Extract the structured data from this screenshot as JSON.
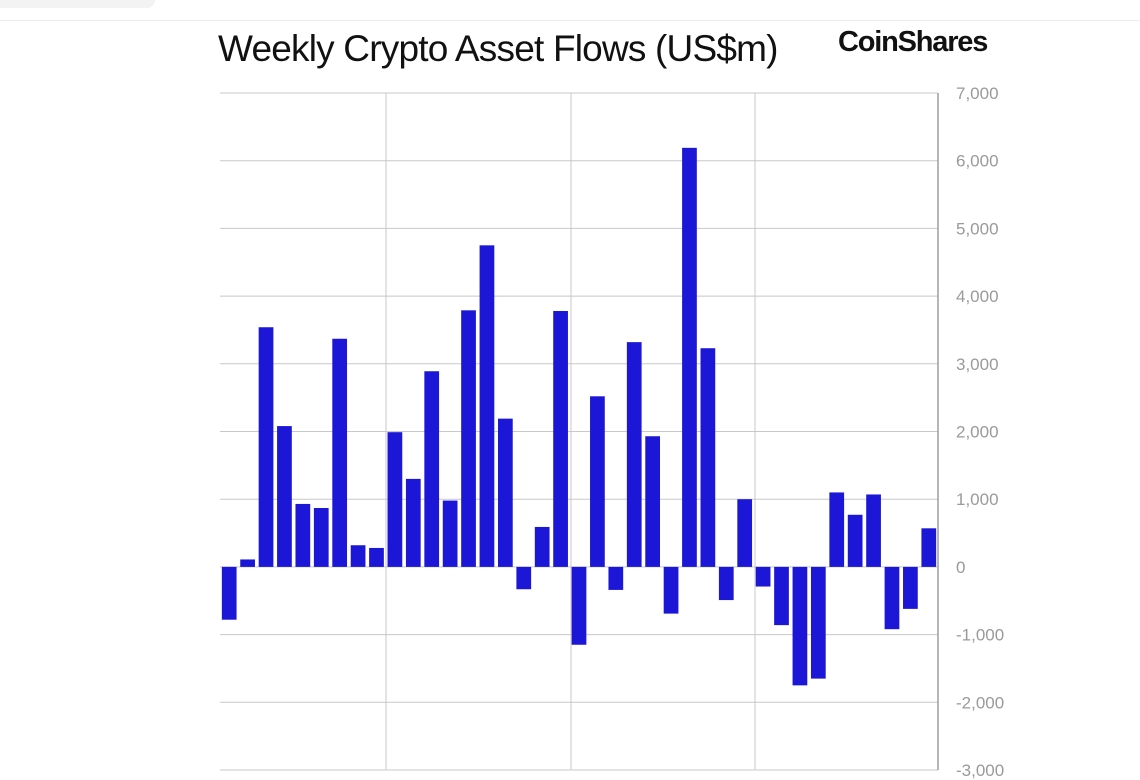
{
  "header": {
    "title": "Weekly Crypto Asset Flows (US$m)",
    "brand": "CoinShares"
  },
  "colors": {
    "bar": "#1c17d6",
    "gridline": "#c8c8c8",
    "axis_line": "#9e9e9e",
    "tick_label": "#9a9a9a"
  },
  "chart_data": {
    "type": "bar",
    "title": "Weekly Crypto Asset Flows (US$m)",
    "xlabel": "",
    "ylabel": "",
    "ylim": [
      -3000,
      7000
    ],
    "y_ticks": [
      7000,
      6000,
      5000,
      4000,
      3000,
      2000,
      1000,
      0,
      -1000,
      -2000,
      -3000
    ],
    "y_tick_labels": [
      "7,000",
      "6,000",
      "5,000",
      "4,000",
      "3,000",
      "2,000",
      "1,000",
      "0",
      "-1,000",
      "-2,000",
      "-3,000"
    ],
    "y_axis_position": "right",
    "grid": true,
    "legend": "none",
    "values": [
      -780,
      110,
      3540,
      2080,
      930,
      870,
      3370,
      320,
      280,
      1990,
      1300,
      2890,
      980,
      3790,
      4750,
      2190,
      -330,
      590,
      3780,
      -1150,
      2520,
      -340,
      3320,
      1930,
      -690,
      6190,
      3230,
      -490,
      1000,
      -290,
      -860,
      -1750,
      -1650,
      1100,
      770,
      1070,
      -920,
      -620,
      570
    ]
  }
}
